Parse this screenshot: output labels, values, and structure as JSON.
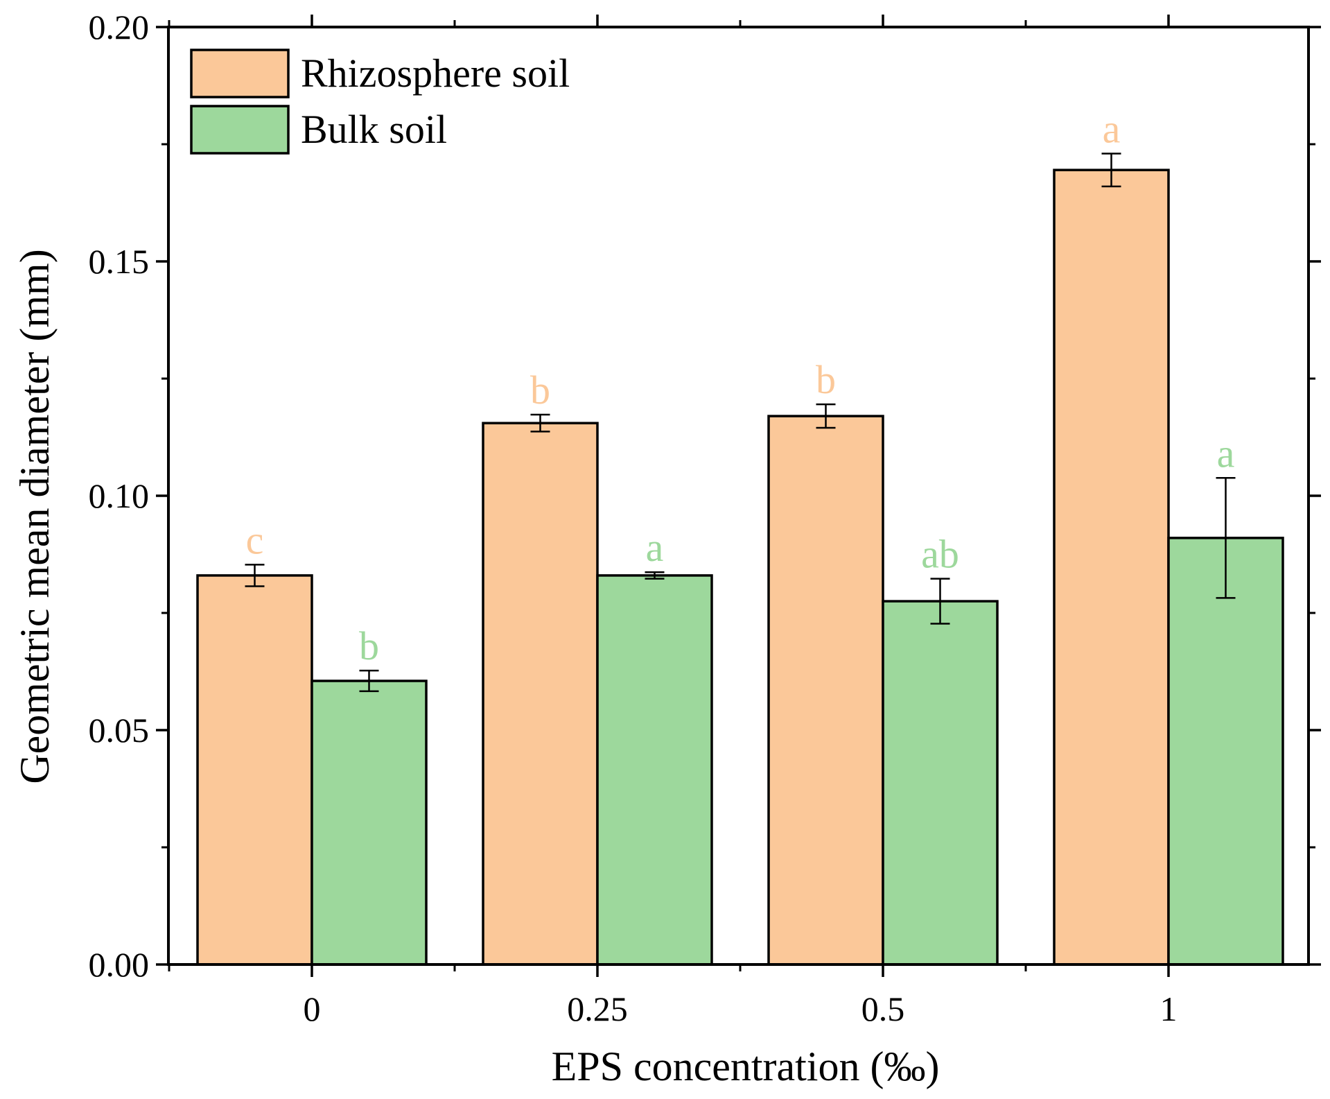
{
  "chart_data": {
    "type": "bar",
    "xlabel": "EPS concentration (‰)",
    "ylabel": "Geometric mean diameter (mm)",
    "categories": [
      "0",
      "0.25",
      "0.5",
      "1"
    ],
    "ylim": [
      0,
      0.2
    ],
    "yticks": [
      0.0,
      0.05,
      0.1,
      0.15,
      0.2
    ],
    "ytick_labels": [
      "0.00",
      "0.05",
      "0.10",
      "0.15",
      "0.20"
    ],
    "grid": false,
    "legend_position": "top-left",
    "series": [
      {
        "name": "Rhizosphere soil",
        "color": "#FBC899",
        "values": [
          0.083,
          0.1155,
          0.117,
          0.1695
        ],
        "errors": [
          0.0023,
          0.0018,
          0.0025,
          0.0035
        ],
        "letters": [
          "c",
          "b",
          "b",
          "a"
        ]
      },
      {
        "name": "Bulk soil",
        "color": "#9DD89C",
        "values": [
          0.0605,
          0.083,
          0.0775,
          0.091
        ],
        "errors": [
          0.0022,
          0.0007,
          0.0048,
          0.0128
        ],
        "letters": [
          "b",
          "a",
          "ab",
          "a"
        ]
      }
    ]
  }
}
